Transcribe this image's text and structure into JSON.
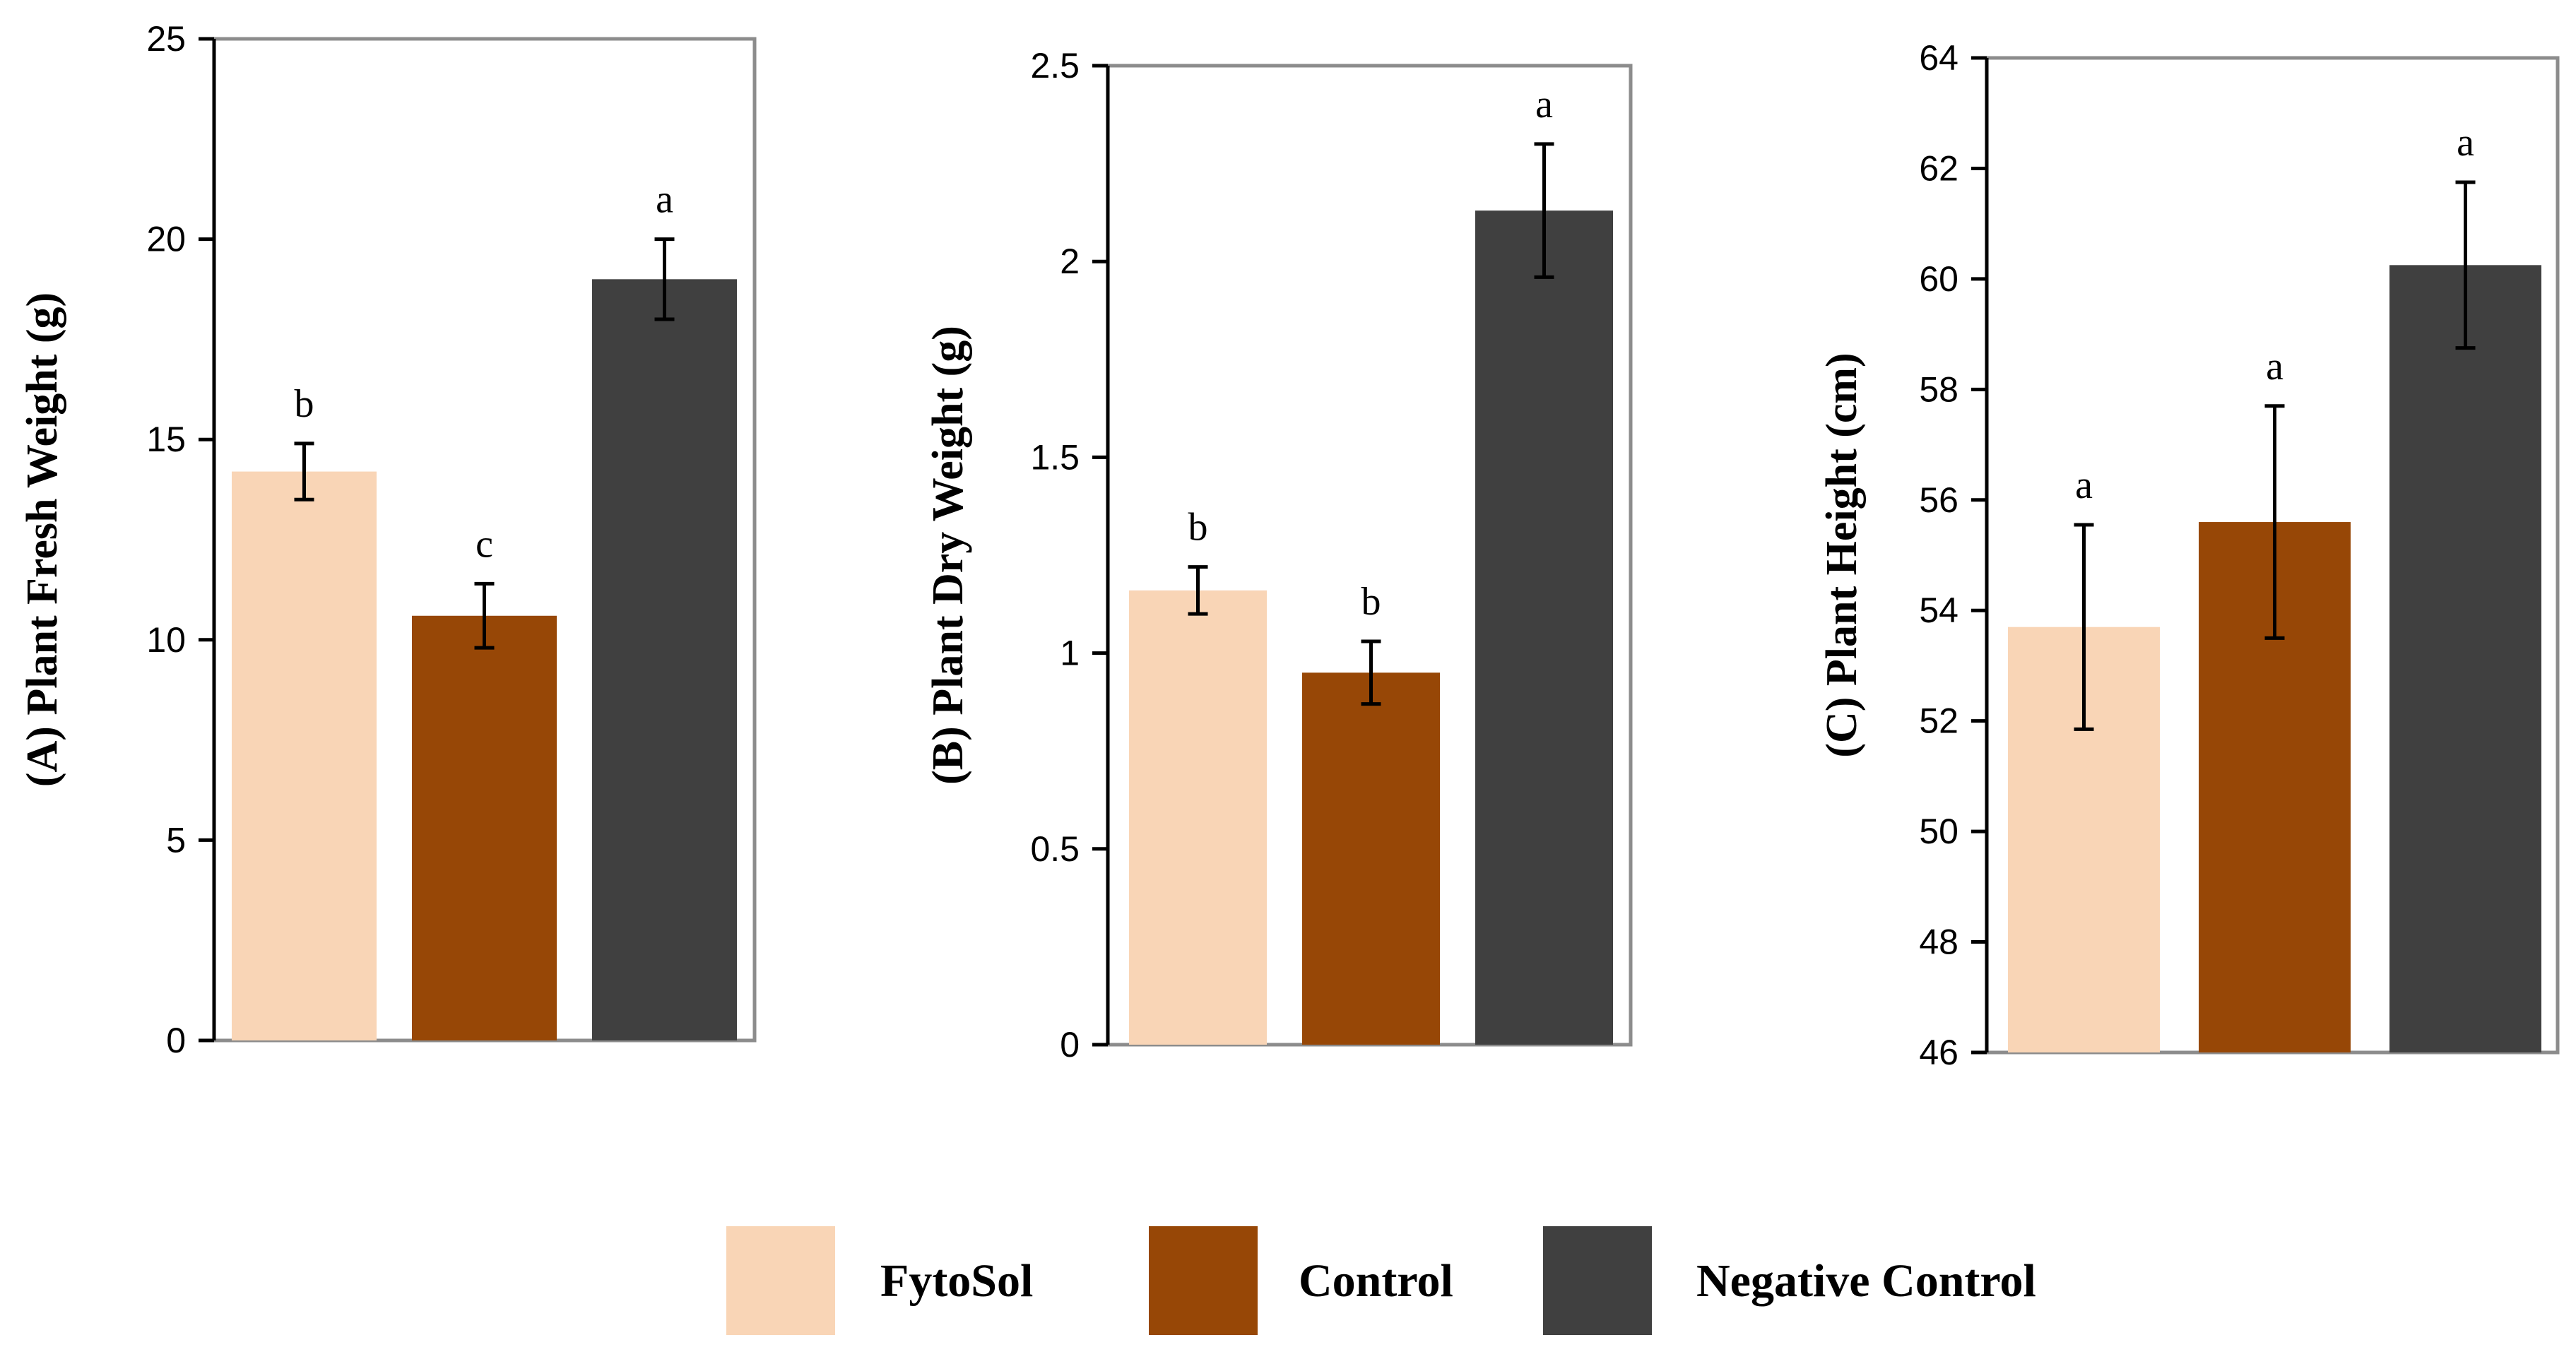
{
  "chart_data": [
    {
      "type": "bar",
      "ylabel": "(A) Plant Fresh Weight (g)",
      "ylim": [
        0,
        25
      ],
      "yticks": [
        "0",
        "5",
        "10",
        "15",
        "20",
        "25"
      ],
      "categories": [
        "FytoSol",
        "Control",
        "Negative Control"
      ],
      "values": [
        14.2,
        10.6,
        19.0
      ],
      "errors": [
        0.7,
        0.8,
        1.0
      ],
      "significance": [
        "b",
        "c",
        "a"
      ]
    },
    {
      "type": "bar",
      "ylabel": "(B) Plant Dry Weight (g)",
      "ylim": [
        0,
        2.5
      ],
      "yticks": [
        "0",
        "0.5",
        "1",
        "1.5",
        "2",
        "2.5"
      ],
      "categories": [
        "FytoSol",
        "Control",
        "Negative Control"
      ],
      "values": [
        1.16,
        0.95,
        2.13
      ],
      "errors": [
        0.06,
        0.08,
        0.17
      ],
      "significance": [
        "b",
        "b",
        "a"
      ]
    },
    {
      "type": "bar",
      "ylabel": "(C) Plant Height (cm)",
      "ylim": [
        46,
        64
      ],
      "yticks": [
        "46",
        "48",
        "50",
        "52",
        "54",
        "56",
        "58",
        "60",
        "62",
        "64"
      ],
      "categories": [
        "FytoSol",
        "Control",
        "Negative Control"
      ],
      "values": [
        53.7,
        55.6,
        60.25
      ],
      "errors": [
        1.85,
        2.1,
        1.5
      ],
      "significance": [
        "a",
        "a",
        "a"
      ]
    }
  ],
  "legend": {
    "position": "bottom-center",
    "items": [
      {
        "label": "FytoSol",
        "color": "#F9D5B6"
      },
      {
        "label": "Control",
        "color": "#974706"
      },
      {
        "label": "Negative Control",
        "color": "#404040"
      }
    ]
  }
}
